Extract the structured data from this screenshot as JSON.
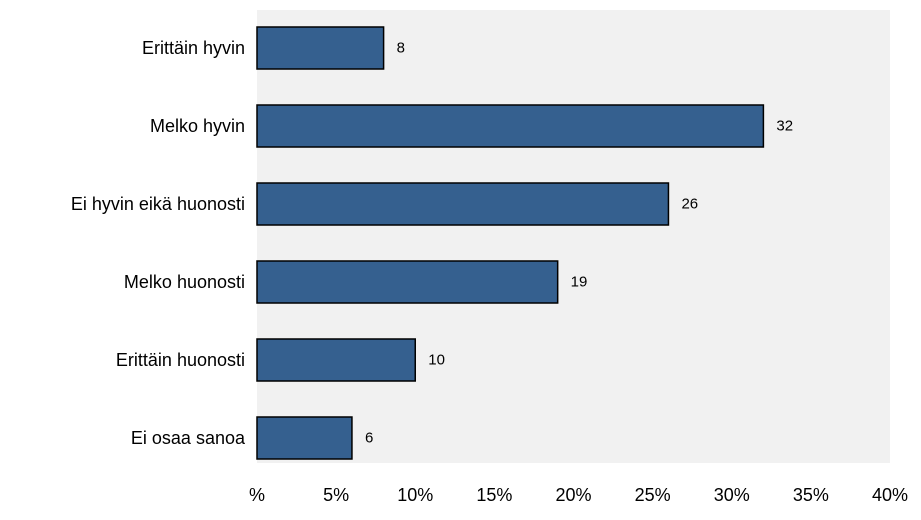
{
  "chart_data": {
    "type": "bar",
    "orientation": "horizontal",
    "categories": [
      "Erittäin hyvin",
      "Melko hyvin",
      "Ei hyvin eikä huonosti",
      "Melko huonosti",
      "Erittäin huonosti",
      "Ei osaa sanoa"
    ],
    "values": [
      8,
      32,
      26,
      19,
      10,
      6
    ],
    "data_labels": [
      "8",
      "32",
      "26",
      "19",
      "10",
      "6"
    ],
    "xlim": [
      0,
      40
    ],
    "x_ticks": [
      0,
      5,
      10,
      15,
      20,
      25,
      30,
      35,
      40
    ],
    "x_tick_labels": [
      "%",
      "5%",
      "10%",
      "15%",
      "20%",
      "25%",
      "30%",
      "35%",
      "40%"
    ],
    "title": "",
    "xlabel": "",
    "ylabel": "",
    "grid": false,
    "legend": "none",
    "colors": {
      "bar_fill": "#35608F",
      "bar_stroke": "#000000",
      "plot_background": "#F1F1F1",
      "page_background": "#FFFFFF"
    }
  }
}
